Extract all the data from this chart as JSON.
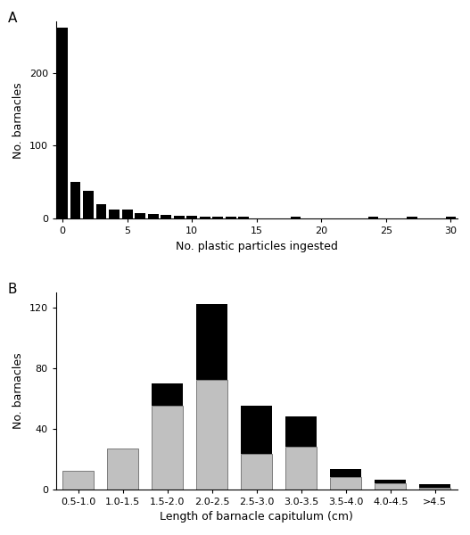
{
  "panel_a": {
    "label": "A",
    "xlabel": "No. plastic particles ingested",
    "ylabel": "No. barnacles",
    "xlim": [
      -0.5,
      30.5
    ],
    "ylim": [
      0,
      270
    ],
    "yticks": [
      0,
      100,
      200
    ],
    "xticks": [
      0,
      5,
      10,
      15,
      20,
      25,
      30
    ],
    "bar_positions": [
      0,
      1,
      2,
      3,
      4,
      5,
      6,
      7,
      8,
      9,
      10,
      11,
      12,
      13,
      14,
      18,
      24,
      27,
      30
    ],
    "bar_heights": [
      262,
      50,
      38,
      20,
      12,
      12,
      7,
      6,
      5,
      4,
      4,
      3,
      3,
      2,
      2,
      2,
      2,
      2,
      2
    ],
    "bar_color": "#000000",
    "bar_width": 0.8
  },
  "panel_b": {
    "label": "B",
    "xlabel": "Length of barnacle capitulum (cm)",
    "ylabel": "No. barnacles",
    "xlim": [
      -0.5,
      8.5
    ],
    "ylim": [
      0,
      130
    ],
    "yticks": [
      0,
      40,
      80,
      120
    ],
    "categories": [
      "0.5-1.0",
      "1.0-1.5",
      "1.5-2.0",
      "2.0-2.5",
      "2.5-3.0",
      "3.0-3.5",
      "3.5-4.0",
      "4.0-4.5",
      ">4.5"
    ],
    "gray_values": [
      12,
      27,
      55,
      72,
      23,
      28,
      8,
      4,
      1
    ],
    "black_values": [
      0,
      0,
      15,
      50,
      32,
      20,
      5,
      2,
      2
    ],
    "gray_color": "#c0c0c0",
    "black_color": "#000000",
    "bar_width": 0.7
  }
}
